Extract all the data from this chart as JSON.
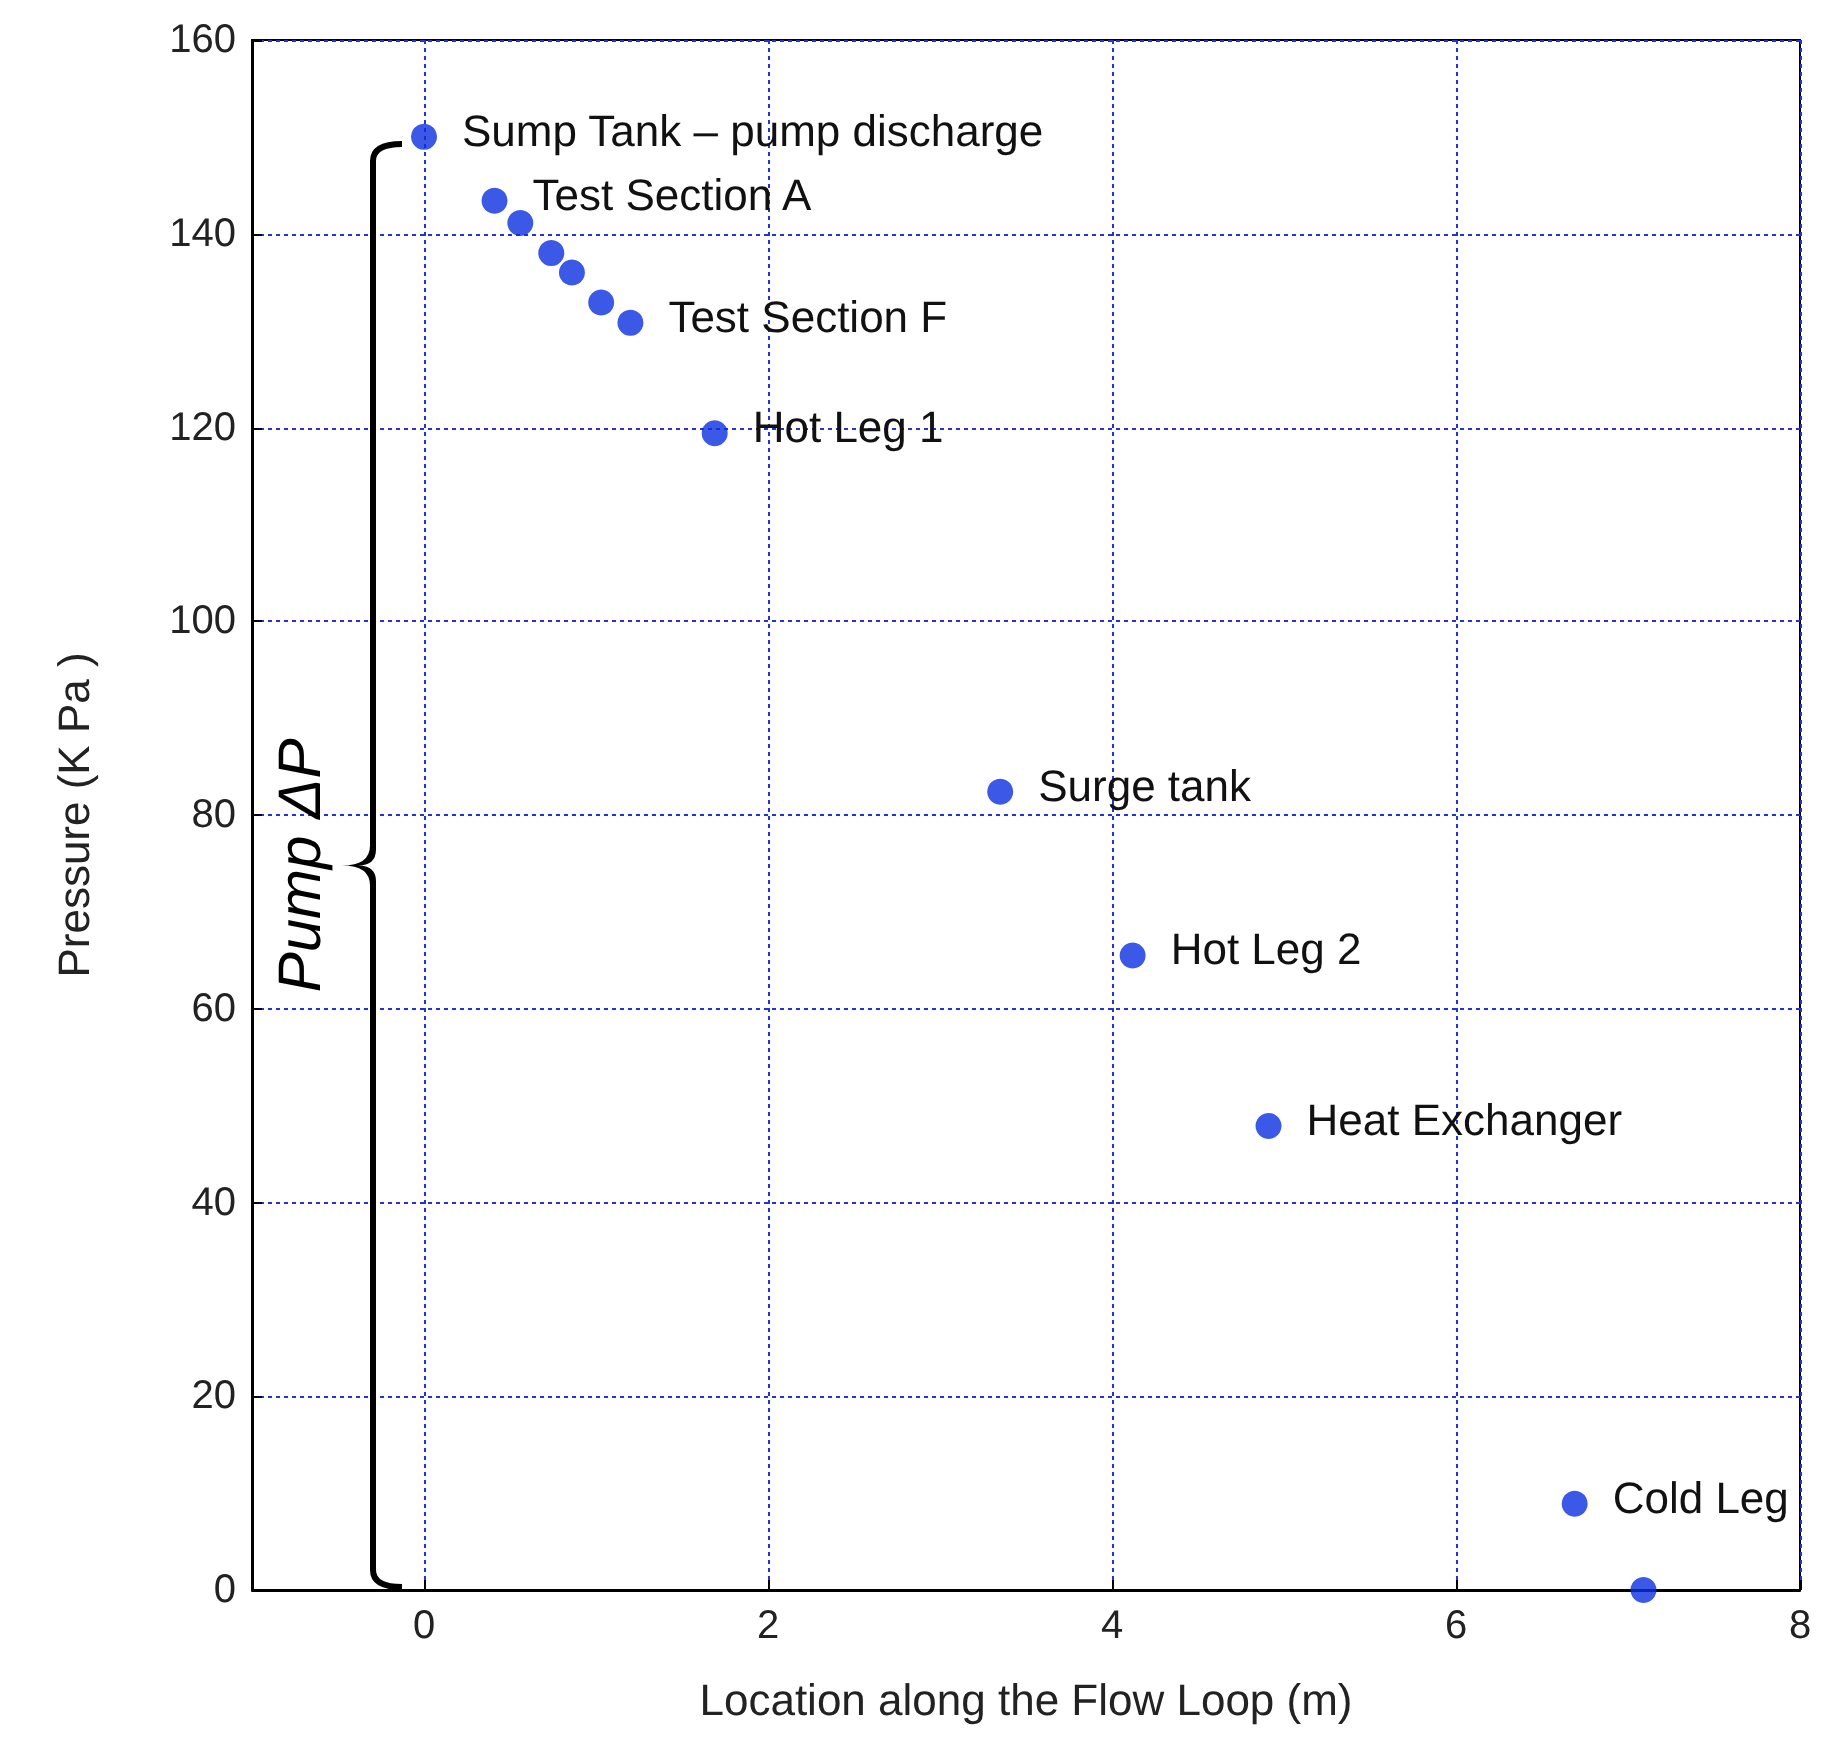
{
  "chart_data": {
    "type": "scatter",
    "xlabel": "Location along the Flow Loop (m)",
    "ylabel": "Pressure (K Pa )",
    "x": [
      0,
      0.41,
      0.56,
      0.74,
      0.86,
      1.03,
      1.2,
      1.69,
      3.35,
      4.12,
      4.91,
      6.69,
      7.09
    ],
    "series": [
      {
        "color": "#0a2ee0",
        "values": [
          150,
          143.4,
          141.1,
          138,
          136,
          132.9,
          130.8,
          119.4,
          82.4,
          65.5,
          47.9,
          8.9,
          0
        ]
      }
    ],
    "xlim": [
      -1,
      8
    ],
    "xticks": [
      0,
      2,
      4,
      6,
      8
    ],
    "ylim": [
      0,
      160
    ],
    "yticks": [
      0,
      20,
      40,
      60,
      80,
      100,
      120,
      140,
      160
    ],
    "grid": true,
    "marker": "circle",
    "annotations": [
      {
        "text": "Sump Tank – pump discharge",
        "x": 0,
        "y": 150
      },
      {
        "text": "Test Section A",
        "x": 0.41,
        "y": 143.4
      },
      {
        "text": "Test Section F",
        "x": 1.2,
        "y": 130.8
      },
      {
        "text": "Hot Leg 1",
        "x": 1.69,
        "y": 119.4
      },
      {
        "text": "Surge tank",
        "x": 3.35,
        "y": 82.4
      },
      {
        "text": "Hot Leg 2",
        "x": 4.12,
        "y": 65.5
      },
      {
        "text": "Heat Exchanger",
        "x": 4.91,
        "y": 47.9
      },
      {
        "text": "Cold Leg",
        "x": 6.69,
        "y": 8.9
      },
      "Pump ΔP"
    ]
  }
}
